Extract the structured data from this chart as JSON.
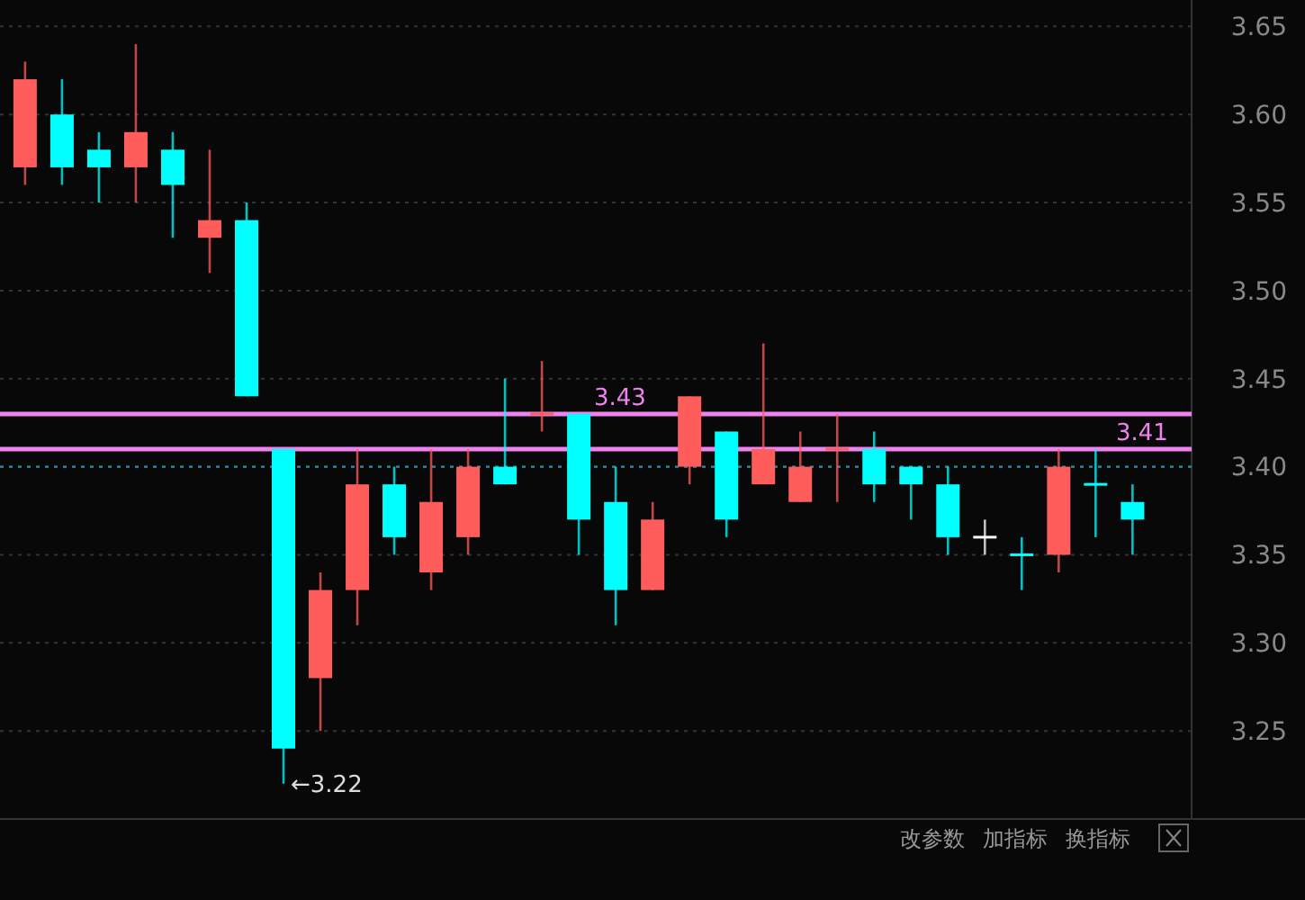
{
  "chart_data": {
    "type": "candlestick",
    "categories": [
      null,
      null,
      null,
      null,
      null,
      null,
      null,
      null,
      null,
      null,
      null,
      null,
      null,
      null,
      null,
      null,
      null,
      null,
      null,
      null,
      null,
      null,
      null,
      null,
      null,
      null,
      null,
      null,
      null,
      null,
      null
    ],
    "ohlc": [
      [
        3.57,
        3.63,
        3.56,
        3.62
      ],
      [
        3.6,
        3.62,
        3.56,
        3.57
      ],
      [
        3.58,
        3.59,
        3.55,
        3.57
      ],
      [
        3.57,
        3.64,
        3.55,
        3.59
      ],
      [
        3.58,
        3.59,
        3.53,
        3.56
      ],
      [
        3.53,
        3.58,
        3.51,
        3.54
      ],
      [
        3.54,
        3.55,
        3.44,
        3.44
      ],
      [
        3.41,
        3.41,
        3.22,
        3.24
      ],
      [
        3.28,
        3.34,
        3.25,
        3.33
      ],
      [
        3.33,
        3.41,
        3.31,
        3.39
      ],
      [
        3.39,
        3.4,
        3.35,
        3.36
      ],
      [
        3.34,
        3.41,
        3.33,
        3.38
      ],
      [
        3.36,
        3.41,
        3.35,
        3.4
      ],
      [
        3.4,
        3.45,
        3.39,
        3.39
      ],
      [
        3.43,
        3.46,
        3.42,
        3.43
      ],
      [
        3.43,
        3.43,
        3.35,
        3.37
      ],
      [
        3.38,
        3.4,
        3.31,
        3.33
      ],
      [
        3.33,
        3.38,
        3.33,
        3.37
      ],
      [
        3.4,
        3.44,
        3.39,
        3.44
      ],
      [
        3.42,
        3.42,
        3.36,
        3.37
      ],
      [
        3.39,
        3.47,
        3.39,
        3.41
      ],
      [
        3.38,
        3.42,
        3.38,
        3.4
      ],
      [
        3.41,
        3.43,
        3.38,
        3.41
      ],
      [
        3.41,
        3.42,
        3.38,
        3.39
      ],
      [
        3.4,
        3.4,
        3.37,
        3.39
      ],
      [
        3.39,
        3.4,
        3.35,
        3.36
      ],
      [
        3.36,
        3.37,
        3.35,
        3.36
      ],
      [
        3.35,
        3.36,
        3.33,
        3.35
      ],
      [
        3.35,
        3.41,
        3.34,
        3.4
      ],
      [
        3.39,
        3.41,
        3.36,
        3.39
      ],
      [
        3.38,
        3.39,
        3.35,
        3.37
      ]
    ],
    "colors": [
      "#ff5c5c",
      "#00ffff",
      "#00ffff",
      "#ff5c5c",
      "#00ffff",
      "#ff5c5c",
      "#00ffff",
      "#00ffff",
      "#ff5c5c",
      "#ff5c5c",
      "#00ffff",
      "#ff5c5c",
      "#ff5c5c",
      "#00ffff",
      "#ff5c5c",
      "#00ffff",
      "#00ffff",
      "#ff5c5c",
      "#ff5c5c",
      "#00ffff",
      "#ff5c5c",
      "#ff5c5c",
      "#ff5c5c",
      "#00ffff",
      "#00ffff",
      "#00ffff",
      "#ffffff",
      "#00ffff",
      "#ff5c5c",
      "#00ffff",
      "#00ffff"
    ],
    "ylim": [
      3.2,
      3.665
    ],
    "yticks": [
      3.25,
      {
        "value": 3.3,
        "label": "3.30"
      },
      3.35,
      {
        "value": 3.4,
        "label": "3.40"
      },
      3.45,
      {
        "value": 3.5,
        "label": "3.50"
      },
      3.55,
      {
        "value": 3.6,
        "label": "3.60"
      },
      3.65
    ],
    "grid": "y",
    "ref_lines": [
      {
        "axis": "y",
        "value": 3.4,
        "color": "#2a8aa8",
        "line_style": "dotted"
      },
      {
        "axis": "y",
        "value": 3.43,
        "label": "3.43",
        "color": "#ee82ee",
        "line_style": "solid"
      },
      {
        "axis": "y",
        "value": 3.41,
        "label": "3.41",
        "color": "#ee82ee",
        "line_style": "solid"
      }
    ],
    "annotations": [
      "←3.22",
      "改参数",
      "加指标",
      "换指标"
    ]
  }
}
